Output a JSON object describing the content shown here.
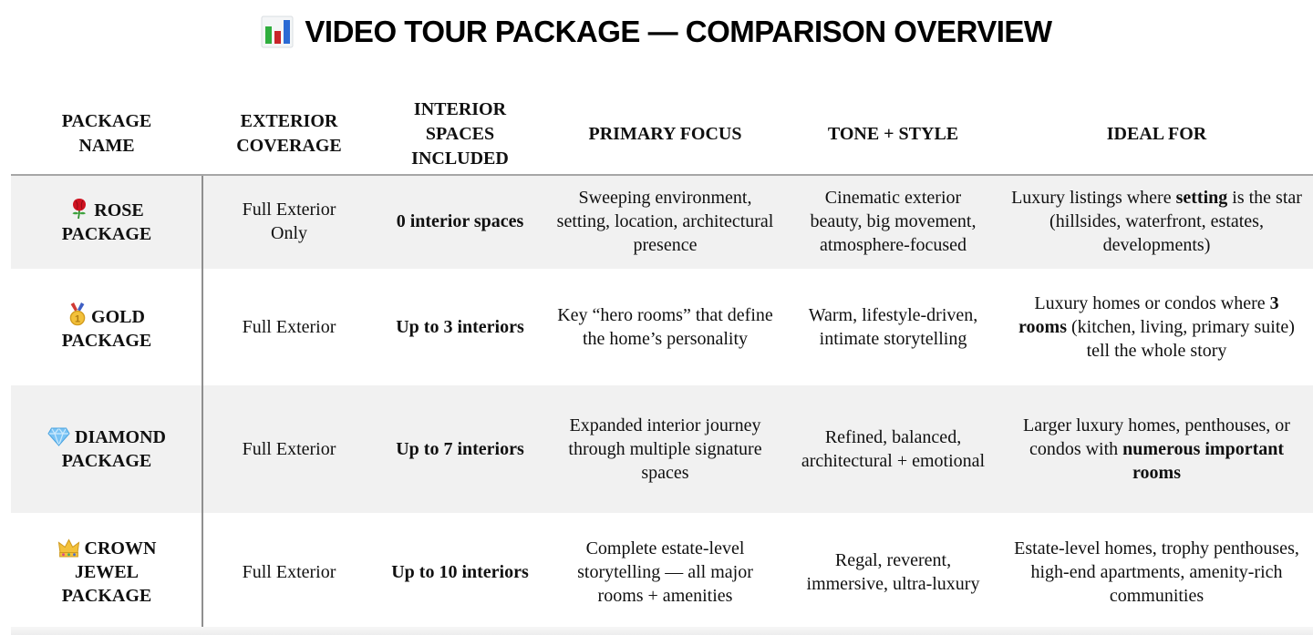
{
  "title": {
    "icon": "bar-chart-icon",
    "text": "VIDEO TOUR PACKAGE — COMPARISON OVERVIEW"
  },
  "colors": {
    "row_alt_bg": "#f1f1f1",
    "header_rule": "#a6a6a6",
    "column_divider": "#8f8f8f",
    "chart_icon_green": "#2fae3e",
    "chart_icon_red": "#c9242a",
    "chart_icon_blue": "#2a6ad4"
  },
  "table": {
    "headers": [
      "PACKAGE NAME",
      "EXTERIOR COVERAGE",
      "INTERIOR SPACES INCLUDED",
      "PRIMARY FOCUS",
      "TONE + STYLE",
      "IDEAL FOR"
    ],
    "rows": [
      {
        "icon": "rose-icon",
        "package_name": "ROSE PACKAGE",
        "exterior_coverage": "Full Exterior Only",
        "interior_spaces": "0 interior spaces",
        "primary_focus": "Sweeping environment, setting, location, architectural presence",
        "tone_style": "Cinematic exterior beauty, big movement, atmosphere-focused",
        "ideal_for": [
          {
            "t": "Luxury listings where "
          },
          {
            "t": "setting",
            "b": true
          },
          {
            "t": " is the star (hillsides, waterfront, estates, developments)"
          }
        ]
      },
      {
        "icon": "gold-medal-icon",
        "package_name": "GOLD PACKAGE",
        "exterior_coverage": "Full Exterior",
        "interior_spaces": "Up to 3 interiors",
        "primary_focus": "Key “hero rooms” that define the home’s personality",
        "tone_style": "Warm, lifestyle-driven, intimate storytelling",
        "ideal_for": [
          {
            "t": "Luxury homes or condos where "
          },
          {
            "t": "3 rooms",
            "b": true
          },
          {
            "t": " (kitchen, living, primary suite) tell the whole story"
          }
        ]
      },
      {
        "icon": "diamond-icon",
        "package_name": "DIAMOND PACKAGE",
        "exterior_coverage": "Full Exterior",
        "interior_spaces": "Up to 7 interiors",
        "primary_focus": "Expanded interior journey through multiple signature spaces",
        "tone_style": "Refined, balanced, architectural + emotional",
        "ideal_for": [
          {
            "t": "Larger luxury homes, penthouses, or condos with "
          },
          {
            "t": "numerous important rooms",
            "b": true
          }
        ]
      },
      {
        "icon": "crown-icon",
        "package_name": "CROWN JEWEL PACKAGE",
        "exterior_coverage": "Full Exterior",
        "interior_spaces": "Up to 10 interiors",
        "primary_focus": "Complete estate-level storytelling — all major rooms + amenities",
        "tone_style": "Regal, reverent, immersive, ultra-luxury",
        "ideal_for": [
          {
            "t": "Estate-level homes, trophy penthouses, high-end apartments, amenity-rich communities"
          }
        ]
      }
    ]
  }
}
